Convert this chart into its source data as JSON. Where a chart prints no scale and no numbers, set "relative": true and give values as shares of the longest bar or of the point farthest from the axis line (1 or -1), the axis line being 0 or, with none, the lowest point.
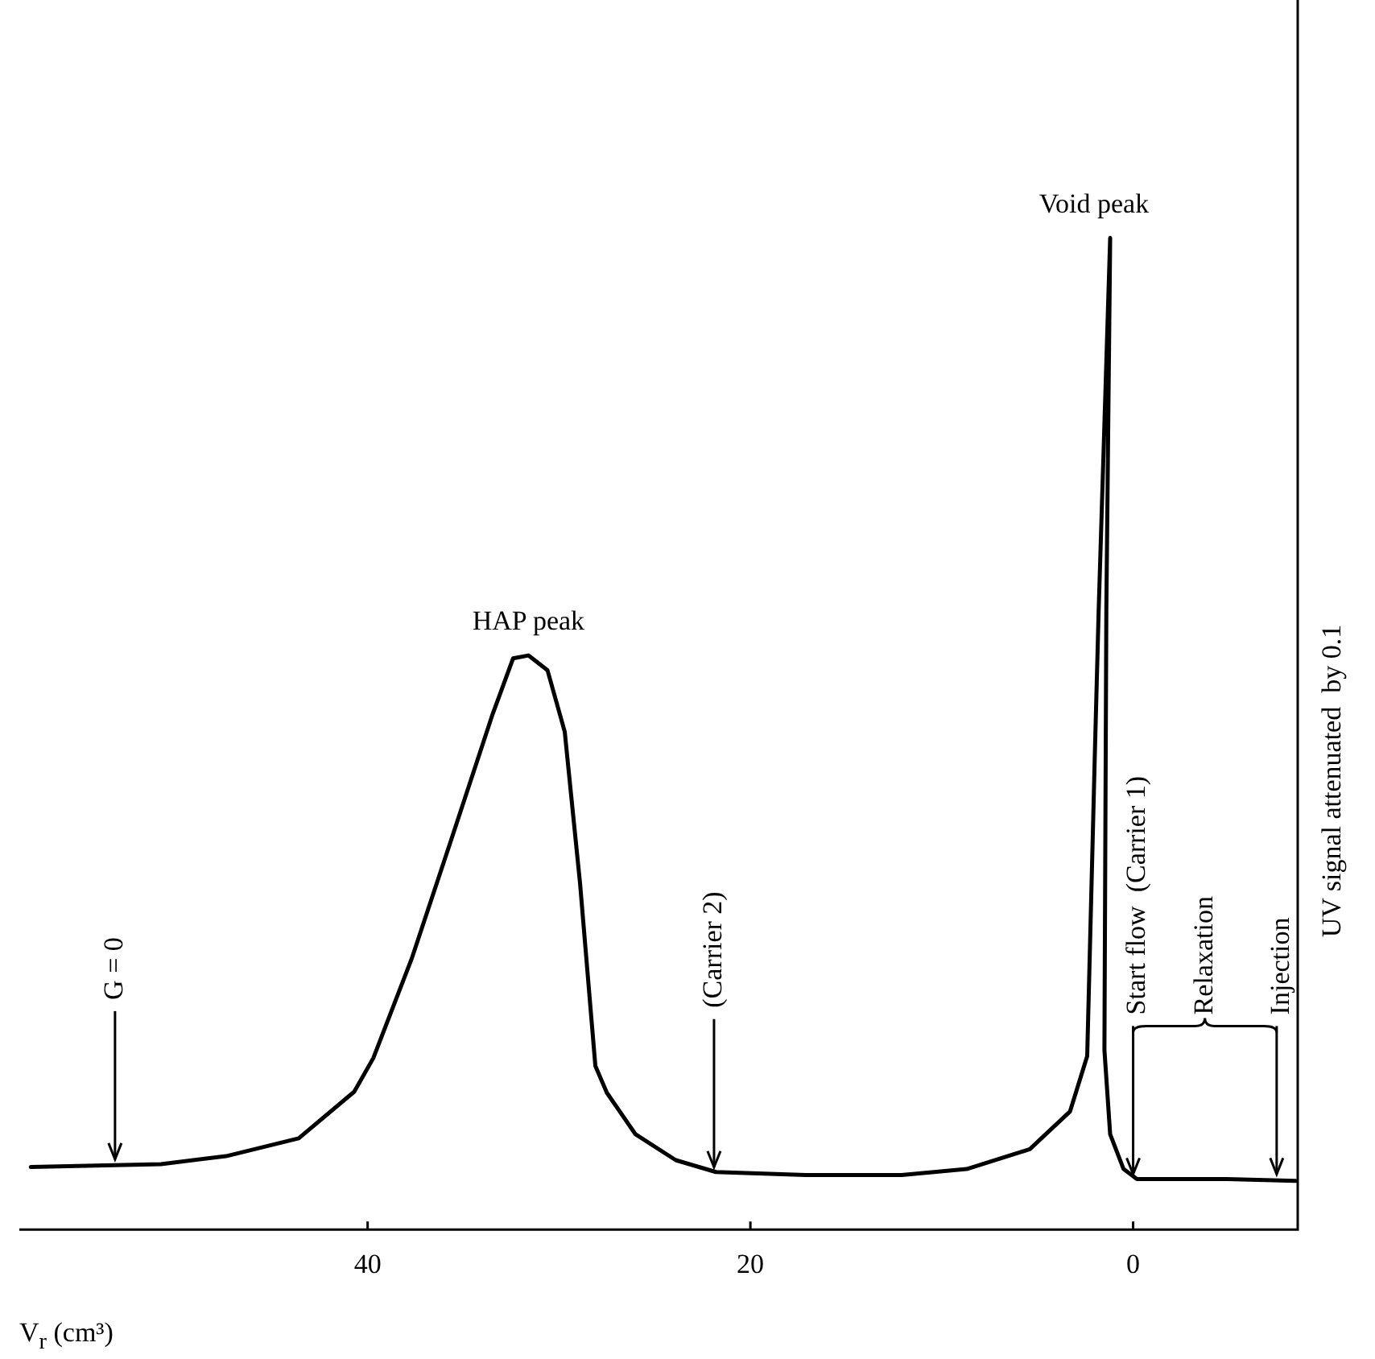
{
  "chart_data": {
    "type": "line",
    "relative": true,
    "xlabel": "V$_{r}$ (cm³)",
    "ylabel": "UV signal attenuated  by 0.1",
    "xlim": [
      58.2,
      -8.6
    ],
    "xticks": [
      40,
      20,
      0
    ],
    "grid": false,
    "legend": false,
    "marker": "none",
    "line_style": "solid",
    "series": [
      {
        "color": "#000000",
        "x": [
          57.6,
          50.8,
          47.4,
          43.6,
          40.7,
          39.7,
          37.7,
          35.6,
          33.5,
          32.4,
          31.6,
          30.6,
          29.7,
          28.9,
          28.1,
          27.5,
          26.0,
          23.9,
          21.8,
          17.1,
          12.1,
          8.7,
          5.4,
          3.3,
          2.4,
          2.0,
          1.8,
          1.2,
          1.4,
          1.5,
          1.2,
          0.5,
          -0.2,
          -4.7,
          -8.5
        ],
        "values": [
          0.063,
          0.066,
          0.074,
          0.092,
          0.139,
          0.173,
          0.273,
          0.395,
          0.518,
          0.576,
          0.579,
          0.564,
          0.502,
          0.349,
          0.165,
          0.138,
          0.096,
          0.07,
          0.058,
          0.055,
          0.055,
          0.061,
          0.081,
          0.119,
          0.175,
          0.48,
          0.625,
          1.0,
          0.625,
          0.181,
          0.096,
          0.061,
          0.051,
          0.051,
          0.049
        ]
      }
    ],
    "annotations": [
      {
        "text": "HAP peak",
        "x": 31.6,
        "y": 0.579
      },
      {
        "text": "Void peak",
        "x": 1.2,
        "y": 1.0
      },
      {
        "text": "G = 0",
        "x": 53.2,
        "y": 0.066
      },
      {
        "text": "(Carrier 2)",
        "x": 21.9,
        "y": 0.058
      },
      {
        "text": "Start flow  (Carrier 1)",
        "x": 0,
        "y": 0.051
      },
      "Relaxation",
      {
        "text": "Injection",
        "x": -7.5,
        "y": 0.051
      }
    ]
  }
}
